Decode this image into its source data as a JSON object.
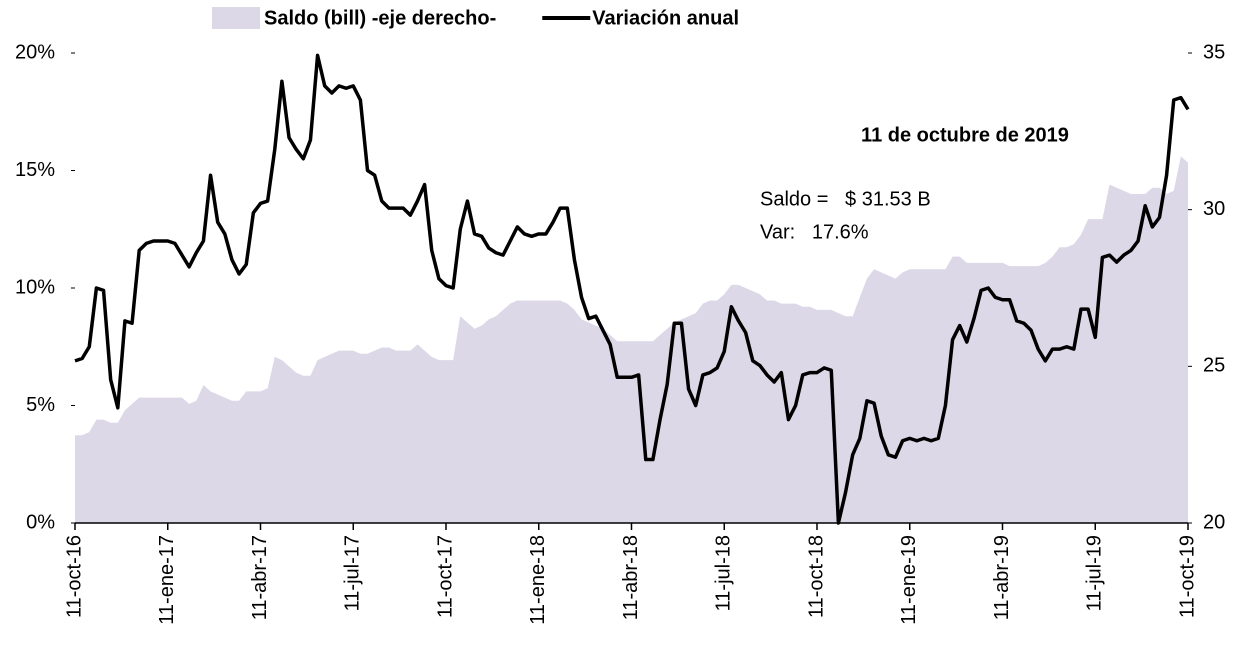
{
  "chart_data": {
    "type": "line",
    "legend": "top",
    "annotations": [
      "11 de octubre de 2019",
      "Saldo =   $ 31.53 B",
      "Var:   17.6%"
    ],
    "categories": [
      "11-oct-16",
      null,
      null,
      null,
      null,
      null,
      null,
      null,
      null,
      null,
      null,
      null,
      null,
      "11-ene-17",
      null,
      null,
      null,
      null,
      null,
      null,
      null,
      null,
      null,
      null,
      null,
      null,
      "11-abr-17",
      null,
      null,
      null,
      null,
      null,
      null,
      null,
      null,
      null,
      null,
      null,
      null,
      "11-jul-17",
      null,
      null,
      null,
      null,
      null,
      null,
      null,
      null,
      null,
      null,
      null,
      null,
      "11-oct-17",
      null,
      null,
      null,
      null,
      null,
      null,
      null,
      null,
      null,
      null,
      null,
      null,
      "11-ene-18",
      null,
      null,
      null,
      null,
      null,
      null,
      null,
      null,
      null,
      null,
      null,
      null,
      "11-abr-18",
      null,
      null,
      null,
      null,
      null,
      null,
      null,
      null,
      null,
      null,
      null,
      null,
      "11-jul-18",
      null,
      null,
      null,
      null,
      null,
      null,
      null,
      null,
      null,
      null,
      null,
      null,
      "11-oct-18",
      null,
      null,
      null,
      null,
      null,
      null,
      null,
      null,
      null,
      null,
      null,
      null,
      "11-ene-19",
      null,
      null,
      null,
      null,
      null,
      null,
      null,
      null,
      null,
      null,
      null,
      null,
      "11-abr-19",
      null,
      null,
      null,
      null,
      null,
      null,
      null,
      null,
      null,
      null,
      null,
      null,
      "11-jul-19",
      null,
      null,
      null,
      null,
      null,
      null,
      null,
      null,
      null,
      null,
      null,
      null,
      "11-oct-19"
    ],
    "series": [
      {
        "name": "Saldo (bill) -eje derecho-",
        "kind": "area",
        "axis": "y2",
        "color": "#dcd8e8",
        "values": [
          22.8,
          22.8,
          22.9,
          23.3,
          23.3,
          23.2,
          23.2,
          23.6,
          23.8,
          24.0,
          24.0,
          24.0,
          24.0,
          24.0,
          24.0,
          24.0,
          23.8,
          23.9,
          24.4,
          24.2,
          24.1,
          24.0,
          23.9,
          23.9,
          24.2,
          24.2,
          24.2,
          24.3,
          25.3,
          25.2,
          25.0,
          24.8,
          24.7,
          24.7,
          25.2,
          25.3,
          25.4,
          25.5,
          25.5,
          25.5,
          25.4,
          25.4,
          25.5,
          25.6,
          25.6,
          25.5,
          25.5,
          25.5,
          25.7,
          25.5,
          25.3,
          25.2,
          25.2,
          25.2,
          26.6,
          26.4,
          26.2,
          26.3,
          26.5,
          26.6,
          26.8,
          27.0,
          27.1,
          27.1,
          27.1,
          27.1,
          27.1,
          27.1,
          27.1,
          27.0,
          26.8,
          26.5,
          26.4,
          26.3,
          26.2,
          26.0,
          25.8,
          25.8,
          25.8,
          25.8,
          25.8,
          25.8,
          26.0,
          26.2,
          26.4,
          26.5,
          26.6,
          26.7,
          27.0,
          27.1,
          27.1,
          27.3,
          27.6,
          27.6,
          27.5,
          27.4,
          27.3,
          27.1,
          27.1,
          27.0,
          27.0,
          27.0,
          26.9,
          26.9,
          26.8,
          26.8,
          26.8,
          26.7,
          26.6,
          26.6,
          27.2,
          27.8,
          28.1,
          28.0,
          27.9,
          27.8,
          28.0,
          28.1,
          28.1,
          28.1,
          28.1,
          28.1,
          28.1,
          28.5,
          28.5,
          28.3,
          28.3,
          28.3,
          28.3,
          28.3,
          28.3,
          28.2,
          28.2,
          28.2,
          28.2,
          28.2,
          28.3,
          28.5,
          28.8,
          28.8,
          28.9,
          29.2,
          29.7,
          29.7,
          29.7,
          30.8,
          30.7,
          30.6,
          30.5,
          30.5,
          30.5,
          30.7,
          30.7,
          30.5,
          30.6,
          31.7,
          31.5
        ]
      },
      {
        "name": "Variación anual",
        "kind": "line",
        "axis": "y",
        "color": "#000000",
        "values": [
          6.9,
          7.0,
          7.5,
          10.0,
          9.9,
          6.1,
          4.9,
          8.6,
          8.5,
          11.6,
          11.9,
          12.0,
          12.0,
          12.0,
          11.9,
          11.4,
          10.9,
          11.5,
          12.0,
          14.8,
          12.8,
          12.3,
          11.2,
          10.6,
          11.0,
          13.2,
          13.6,
          13.7,
          15.9,
          18.8,
          16.4,
          15.9,
          15.5,
          16.3,
          19.9,
          18.6,
          18.3,
          18.6,
          18.5,
          18.6,
          18.0,
          15.0,
          14.8,
          13.7,
          13.4,
          13.4,
          13.4,
          13.1,
          13.7,
          14.4,
          11.6,
          10.4,
          10.1,
          10.0,
          12.5,
          13.7,
          12.3,
          12.2,
          11.7,
          11.5,
          11.4,
          12.0,
          12.6,
          12.3,
          12.2,
          12.3,
          12.3,
          12.8,
          13.4,
          13.4,
          11.2,
          9.6,
          8.7,
          8.8,
          8.2,
          7.6,
          6.2,
          6.2,
          6.2,
          6.3,
          2.7,
          2.7,
          4.4,
          5.9,
          8.5,
          8.5,
          5.7,
          5.0,
          6.3,
          6.4,
          6.6,
          7.3,
          9.2,
          8.6,
          8.1,
          6.9,
          6.7,
          6.3,
          6.0,
          6.4,
          4.4,
          5.0,
          6.3,
          6.4,
          6.4,
          6.6,
          6.5,
          0.0,
          1.3,
          2.9,
          3.6,
          5.2,
          5.1,
          3.7,
          2.9,
          2.8,
          3.5,
          3.6,
          3.5,
          3.6,
          3.5,
          3.6,
          5.0,
          7.8,
          8.4,
          7.7,
          8.7,
          9.9,
          10.0,
          9.6,
          9.5,
          9.5,
          8.6,
          8.5,
          8.2,
          7.4,
          6.9,
          7.4,
          7.4,
          7.5,
          7.4,
          9.1,
          9.1,
          7.9,
          11.3,
          11.4,
          11.1,
          11.4,
          11.6,
          12.0,
          13.5,
          12.6,
          13.0,
          14.8,
          18.0,
          18.1,
          17.6
        ]
      }
    ],
    "ylim": [
      0,
      20
    ],
    "yticks": [
      {
        "value": 0,
        "label": "0%"
      },
      {
        "value": 5,
        "label": "5%"
      },
      {
        "value": 10,
        "label": "10%"
      },
      {
        "value": 15,
        "label": "15%"
      },
      {
        "value": 20,
        "label": "20%"
      }
    ],
    "y2lim": [
      20,
      35
    ],
    "y2ticks": [
      20,
      25,
      30,
      35
    ]
  }
}
